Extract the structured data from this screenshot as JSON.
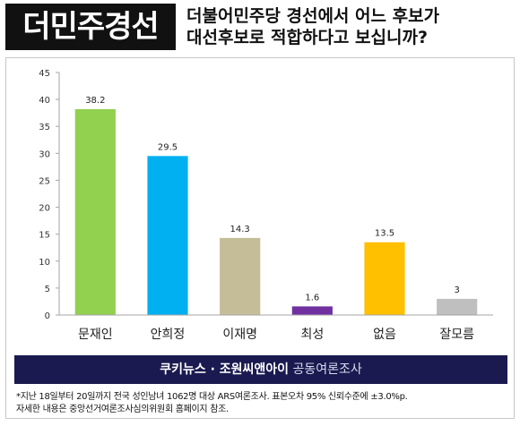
{
  "header": {
    "badge": "더민주경선",
    "question_line1": "더불어민주당 경선에서 어느 후보가",
    "question_line2": "대선후보로 적합하다고 보십니까?"
  },
  "chart_data": {
    "type": "bar",
    "categories": [
      "문재인",
      "안희정",
      "이재명",
      "최성",
      "없음",
      "잘모름"
    ],
    "values": [
      38.2,
      29.5,
      14.3,
      1.6,
      13.5,
      3
    ],
    "labels": [
      "38.2",
      "29.5",
      "14.3",
      "1.6",
      "13.5",
      "3"
    ],
    "colors": [
      "#92d050",
      "#00b0f0",
      "#c4bd97",
      "#7030a0",
      "#ffc000",
      "#bfbfbf"
    ],
    "yticks": [
      0,
      5,
      10,
      15,
      20,
      25,
      30,
      35,
      40,
      45
    ],
    "ylim": [
      0,
      45
    ],
    "title": "",
    "xlabel": "",
    "ylabel": "",
    "grid": false
  },
  "source": {
    "main": "쿠키뉴스 · 조원씨앤아이",
    "sub": "공동여론조사"
  },
  "footnote": {
    "line1": "*지난 18일부터 20일까지 전국 성인남녀 1062명 대상 ARS여론조사. 표본오차 95% 신뢰수준에 ±3.0%p.",
    "line2": "자세한 내용은 중앙선거여론조사심의위원회 홈페이지 참조."
  }
}
